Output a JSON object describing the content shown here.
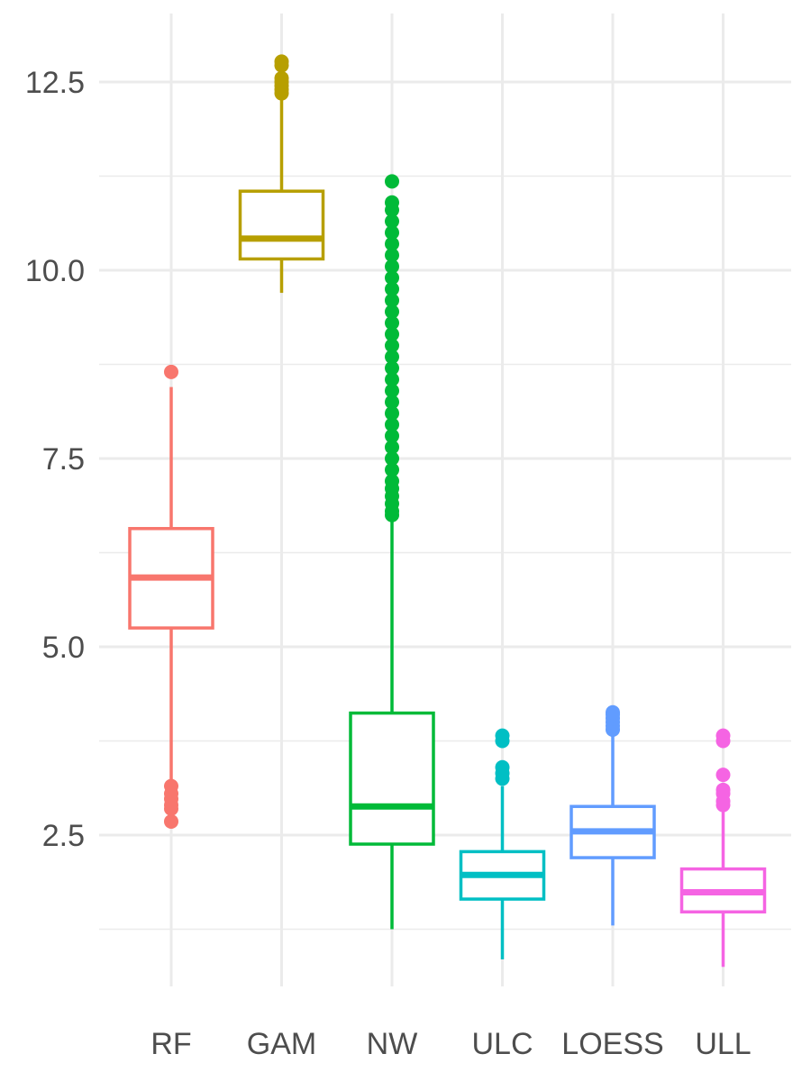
{
  "chart_data": {
    "type": "boxplot",
    "title": "",
    "xlabel": "",
    "ylabel": "",
    "ylim": [
      0.7,
      13.5
    ],
    "y_ticks": [
      2.5,
      5.0,
      7.5,
      10.0,
      12.5
    ],
    "y_tick_labels": [
      "2.5",
      "5.0",
      "7.5",
      "10.0",
      "12.5"
    ],
    "grid": true,
    "legend": "none",
    "categories": [
      "RF",
      "GAM",
      "NW",
      "ULC",
      "LOESS",
      "ULL"
    ],
    "series": [
      {
        "category": "RF",
        "color": "#F8766D",
        "whisker_low": 3.2,
        "q1": 5.25,
        "median": 5.92,
        "q3": 6.57,
        "whisker_high": 8.45,
        "outliers": [
          8.65,
          3.15,
          3.05,
          2.98,
          2.9,
          2.85,
          2.68
        ]
      },
      {
        "category": "GAM",
        "color": "#B79F00",
        "whisker_low": 9.7,
        "q1": 10.15,
        "median": 10.42,
        "q3": 11.05,
        "whisker_high": 12.3,
        "outliers": [
          12.35,
          12.4,
          12.45,
          12.5,
          12.55,
          12.72,
          12.77
        ]
      },
      {
        "category": "NW",
        "color": "#00BA38",
        "whisker_low": 1.25,
        "q1": 2.38,
        "median": 2.88,
        "q3": 4.12,
        "whisker_high": 6.7,
        "outliers": [
          6.75,
          6.8,
          6.9,
          7.0,
          7.1,
          7.2,
          7.35,
          7.5,
          7.65,
          7.8,
          7.95,
          8.1,
          8.25,
          8.4,
          8.55,
          8.7,
          8.85,
          9.0,
          9.15,
          9.3,
          9.45,
          9.6,
          9.75,
          9.9,
          10.05,
          10.2,
          10.35,
          10.5,
          10.65,
          10.8,
          10.9,
          11.18
        ]
      },
      {
        "category": "ULC",
        "color": "#00BFC4",
        "whisker_low": 0.85,
        "q1": 1.65,
        "median": 1.97,
        "q3": 2.28,
        "whisker_high": 3.15,
        "outliers": [
          3.25,
          3.32,
          3.4,
          3.75,
          3.82
        ]
      },
      {
        "category": "LOESS",
        "color": "#619CFF",
        "whisker_low": 1.3,
        "q1": 2.2,
        "median": 2.55,
        "q3": 2.88,
        "whisker_high": 3.85,
        "outliers": [
          3.9,
          3.95,
          4.0,
          4.05,
          4.1,
          4.13
        ]
      },
      {
        "category": "ULL",
        "color": "#F564E3",
        "whisker_low": 0.75,
        "q1": 1.48,
        "median": 1.74,
        "q3": 2.05,
        "whisker_high": 2.85,
        "outliers": [
          2.9,
          2.95,
          3.05,
          3.1,
          3.3,
          3.75,
          3.82
        ]
      }
    ]
  }
}
